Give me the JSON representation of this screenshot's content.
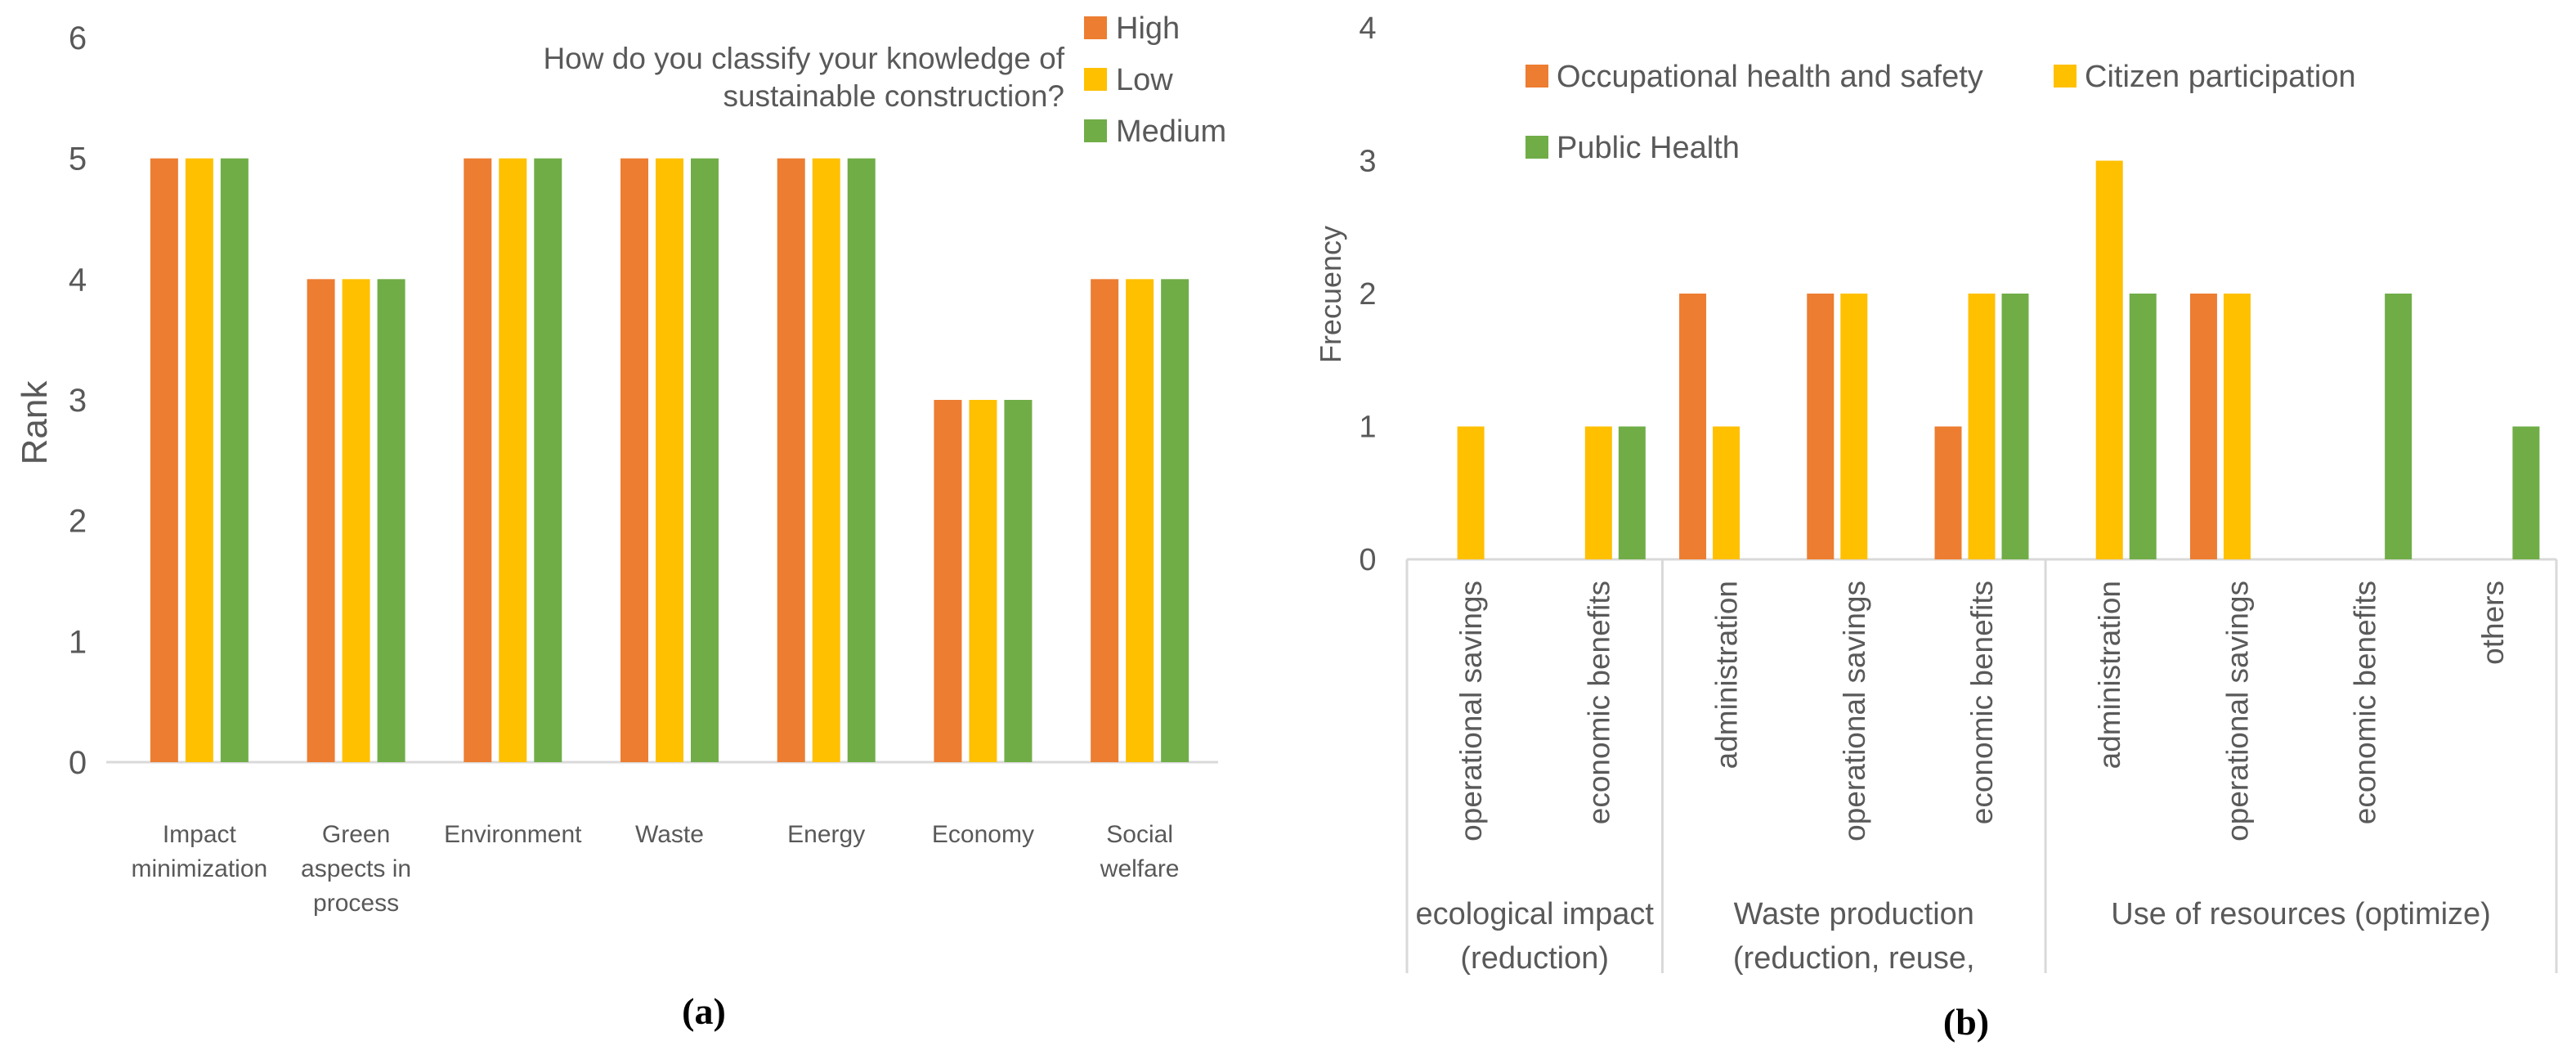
{
  "colors": {
    "orange": "#ED7D31",
    "yellow": "#FFC000",
    "green": "#70AD47",
    "axis": "#D9D9D9",
    "text": "#595959"
  },
  "panel_labels": {
    "a": "(a)",
    "b": "(b)"
  },
  "chart_data": [
    {
      "type": "bar",
      "id": "a",
      "title": "How do you classify your knowledge of sustainable construction?",
      "title_lines": [
        "How do you classify your knowledge of",
        "sustainable construction?"
      ],
      "xlabel": "",
      "ylabel": "Rank",
      "ylim": [
        0,
        6
      ],
      "yticks": [
        "0",
        "1",
        "2",
        "3",
        "4",
        "5",
        "6"
      ],
      "grid": false,
      "legend_position": "top-right",
      "categories": [
        "Impact minimization",
        "Green aspects in process",
        "Environment",
        "Waste",
        "Energy",
        "Economy",
        "Social welfare"
      ],
      "category_lines": [
        [
          "Impact",
          "minimization"
        ],
        [
          "Green",
          "aspects in",
          "process"
        ],
        [
          "Environment"
        ],
        [
          "Waste"
        ],
        [
          "Energy"
        ],
        [
          "Economy"
        ],
        [
          "Social",
          "welfare"
        ]
      ],
      "series": [
        {
          "name": "High",
          "color": "#ED7D31",
          "values": [
            5,
            4,
            5,
            5,
            5,
            3,
            4
          ]
        },
        {
          "name": "Low",
          "color": "#FFC000",
          "values": [
            5,
            4,
            5,
            5,
            5,
            3,
            4
          ]
        },
        {
          "name": "Medium",
          "color": "#70AD47",
          "values": [
            5,
            4,
            5,
            5,
            5,
            3,
            4
          ]
        }
      ]
    },
    {
      "type": "bar",
      "id": "b",
      "title": "",
      "xlabel": "",
      "ylabel": "Frecuency",
      "ylim": [
        0,
        4
      ],
      "yticks": [
        "0",
        "1",
        "2",
        "3",
        "4"
      ],
      "grid": false,
      "legend_position": "top",
      "categories": [
        "operational savings",
        "economic benefits",
        "administration",
        "operational savings",
        "economic benefits",
        "administration",
        "operational savings",
        "economic benefits",
        "others"
      ],
      "groups": [
        {
          "lines": [
            "ecological impact",
            "(reduction)"
          ],
          "count": 2
        },
        {
          "lines": [
            "Waste production",
            "(reduction, reuse,"
          ],
          "count": 3
        },
        {
          "lines": [
            "Use of resources (optimize)"
          ],
          "count": 4
        }
      ],
      "series": [
        {
          "name": "Occupational health and safety",
          "color": "#ED7D31",
          "values": [
            0,
            0,
            2,
            2,
            1,
            0,
            2,
            0,
            0
          ]
        },
        {
          "name": "Citizen participation",
          "color": "#FFC000",
          "values": [
            1,
            1,
            1,
            2,
            2,
            3,
            2,
            0,
            0
          ]
        },
        {
          "name": "Public Health",
          "color": "#70AD47",
          "values": [
            0,
            1,
            0,
            0,
            2,
            2,
            0,
            2,
            1
          ]
        }
      ]
    }
  ]
}
